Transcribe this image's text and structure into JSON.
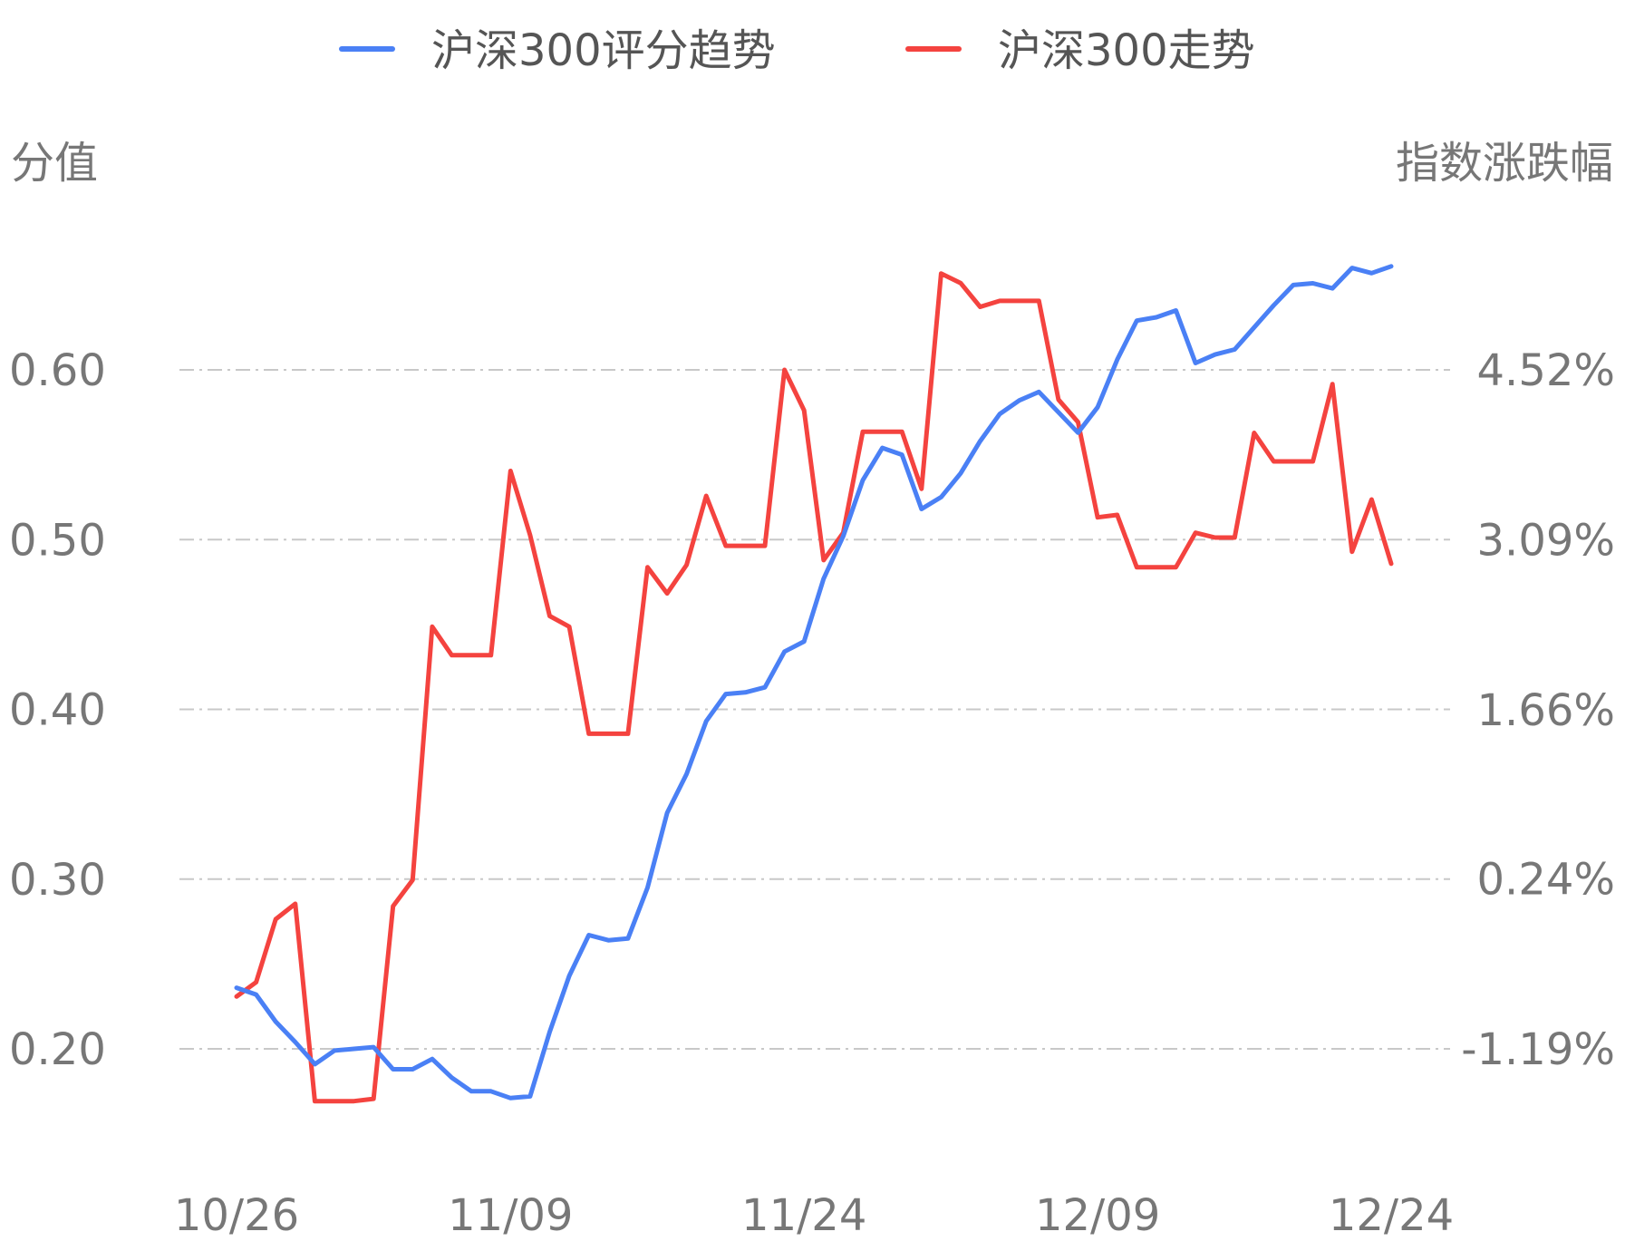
{
  "chart_data": {
    "type": "line",
    "legend": [
      {
        "name": "沪深300评分趋势",
        "color": "#4a80f5"
      },
      {
        "name": "沪深300走势",
        "color": "#f4433f"
      }
    ],
    "legend_position": "top",
    "ylabel_left": "分值",
    "ylabel_right": "指数涨跌幅",
    "left_axis": {
      "ticks": [
        "0.20",
        "0.30",
        "0.40",
        "0.50",
        "0.60"
      ],
      "tick_values": [
        0.2,
        0.3,
        0.4,
        0.5,
        0.6
      ],
      "ylim": [
        0.12,
        0.72
      ]
    },
    "right_axis": {
      "ticks": [
        "-1.19%",
        "0.24%",
        "1.66%",
        "3.09%",
        "4.52%"
      ],
      "tick_values": [
        -1.19,
        0.24,
        1.66,
        3.09,
        4.52
      ],
      "ylim": [
        -2.0,
        6.0
      ]
    },
    "x_ticks": [
      {
        "label": "10/26",
        "index": 0
      },
      {
        "label": "11/09",
        "index": 14
      },
      {
        "label": "11/24",
        "index": 29
      },
      {
        "label": "12/09",
        "index": 44
      },
      {
        "label": "12/24",
        "index": 59
      }
    ],
    "grid": true,
    "series": [
      {
        "name": "沪深300评分趋势",
        "axis": "left",
        "color": "#4a80f5",
        "values": [
          0.236,
          0.232,
          0.216,
          0.204,
          0.191,
          0.199,
          0.2,
          0.201,
          0.188,
          0.188,
          0.194,
          0.183,
          0.175,
          0.175,
          0.171,
          0.172,
          0.21,
          0.243,
          0.267,
          0.264,
          0.265,
          0.295,
          0.339,
          0.362,
          0.393,
          0.409,
          0.41,
          0.413,
          0.434,
          0.44,
          0.477,
          0.502,
          0.535,
          0.554,
          0.55,
          0.518,
          0.525,
          0.539,
          0.558,
          0.574,
          0.582,
          0.587,
          0.575,
          0.563,
          0.578,
          0.606,
          0.629,
          0.631,
          0.635,
          0.604,
          0.609,
          0.612,
          0.625,
          0.638,
          0.65,
          0.651,
          0.648,
          0.66,
          0.657,
          0.661
        ]
      },
      {
        "name": "沪深300走势",
        "axis": "right",
        "color": "#f4433f",
        "values": [
          -0.75,
          -0.63,
          -0.1,
          0.03,
          -1.63,
          -1.63,
          -1.63,
          -1.61,
          0.01,
          0.23,
          2.36,
          2.12,
          2.12,
          2.12,
          3.67,
          3.13,
          2.45,
          2.36,
          1.46,
          1.46,
          1.46,
          2.86,
          2.64,
          2.88,
          3.46,
          3.04,
          3.04,
          3.04,
          4.52,
          4.18,
          2.92,
          3.15,
          4.0,
          4.0,
          4.0,
          3.52,
          5.33,
          5.25,
          5.05,
          5.1,
          5.1,
          5.1,
          4.27,
          4.08,
          3.28,
          3.3,
          2.86,
          2.86,
          2.86,
          3.15,
          3.11,
          3.11,
          3.99,
          3.75,
          3.75,
          3.75,
          4.4,
          2.99,
          3.43,
          2.89
        ]
      }
    ]
  }
}
